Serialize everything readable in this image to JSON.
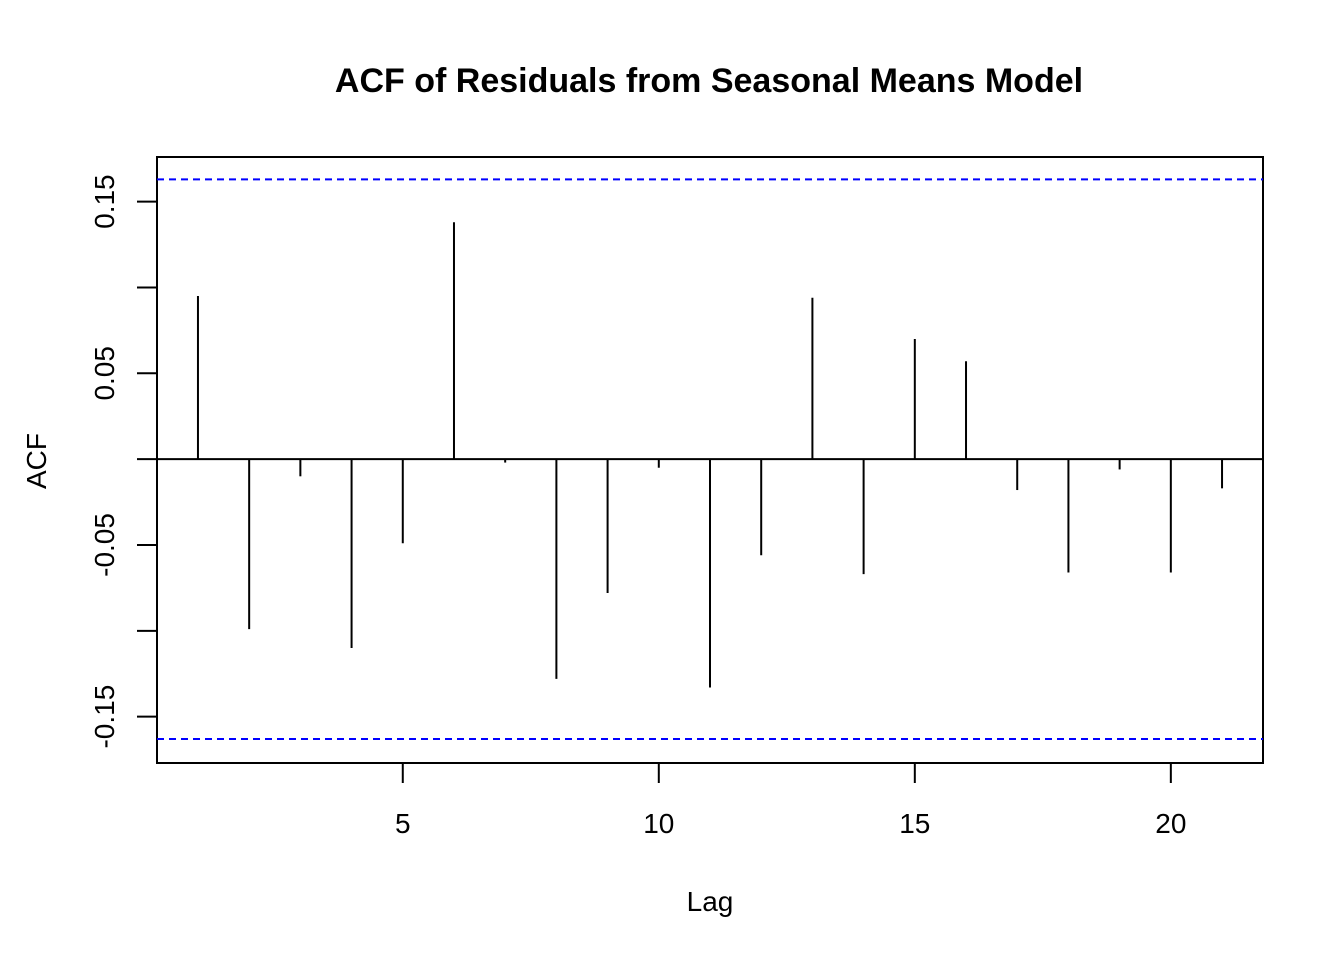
{
  "chart_data": {
    "type": "bar",
    "title": "ACF of Residuals from Seasonal Means Model",
    "xlabel": "Lag",
    "ylabel": "ACF",
    "x": [
      1,
      2,
      3,
      4,
      5,
      6,
      7,
      8,
      9,
      10,
      11,
      12,
      13,
      14,
      15,
      16,
      17,
      18,
      19,
      20,
      21
    ],
    "values": [
      0.095,
      -0.099,
      -0.01,
      -0.11,
      -0.049,
      0.138,
      -0.002,
      -0.128,
      -0.078,
      -0.005,
      -0.133,
      -0.056,
      0.094,
      -0.067,
      0.07,
      0.057,
      -0.018,
      -0.066,
      -0.006,
      -0.066,
      -0.017
    ],
    "xlim": [
      0.2,
      21.8
    ],
    "ylim": [
      -0.177,
      0.176
    ],
    "x_ticks": [
      5,
      10,
      15,
      20
    ],
    "y_ticks": [
      -0.15,
      -0.1,
      -0.05,
      0,
      0.05,
      0.1,
      0.15
    ],
    "y_tick_labels": [
      "-0.15",
      "",
      "-0.05",
      "",
      "0.05",
      "",
      "0.15"
    ],
    "confidence_bound": 0.163,
    "confidence_color": "#0000ff",
    "grid": false,
    "legend": "none"
  }
}
